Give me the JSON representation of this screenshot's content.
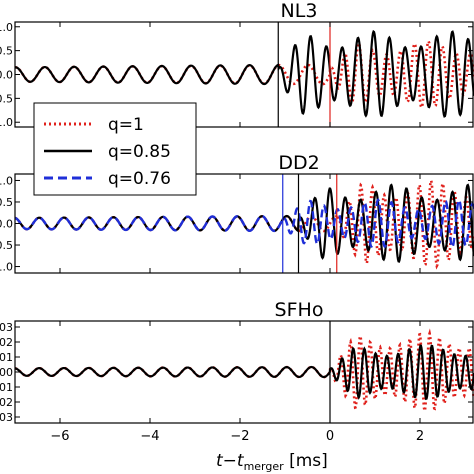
{
  "chart_data": {
    "type": "line",
    "xlabel_main": "t−t",
    "xlabel_sub": "merger",
    "xlabel_unit": " [ms]",
    "xlim": [
      -7,
      3.2
    ],
    "xticks": [
      -6,
      -4,
      -2,
      0,
      2
    ],
    "xtick_labels": [
      "−6",
      "−4",
      "−2",
      "0",
      "2"
    ],
    "legend": {
      "placement": "center-left",
      "entries": [
        {
          "label": "q=1",
          "color": "#e0201b",
          "style": "dotted"
        },
        {
          "label": "q=0.85",
          "color": "#000000",
          "style": "solid"
        },
        {
          "label": "q=0.76",
          "color": "#1f2fd8",
          "style": "dashed"
        }
      ]
    },
    "panels": [
      {
        "title": "NL3",
        "ylim": [
          -1.1,
          1.1
        ],
        "ytick_values": [
          1.0,
          0.5,
          0.0,
          -0.5,
          -1.0
        ],
        "ytick_labels": [
          "1.0",
          "0.5",
          "0.0",
          "0.5",
          "1.0"
        ],
        "vlines": [
          {
            "x": -1.15,
            "color": "#000000"
          },
          {
            "x": 0.0,
            "color": "#e0201b"
          }
        ],
        "series": [
          {
            "ref": "q=1",
            "style": "dotted",
            "color": "#e0201b",
            "inspiral_amp": 0.15,
            "inspiral_period": 0.65,
            "post_amp": 0.7,
            "post_period": 0.31,
            "t_merge": 0.0
          },
          {
            "ref": "q=0.85",
            "style": "solid",
            "color": "#000000",
            "inspiral_amp": 0.15,
            "inspiral_period": 0.65,
            "post_amp": 0.9,
            "post_period": 0.35,
            "t_merge": -1.15
          }
        ]
      },
      {
        "title": "DD2",
        "ylim": [
          -1.15,
          1.15
        ],
        "ytick_values": [
          1.0,
          0.5,
          0.0,
          -0.5,
          -1.0
        ],
        "ytick_labels": [
          "1.0",
          "0.5",
          "0.0",
          "0.5",
          "1.0"
        ],
        "vlines": [
          {
            "x": -1.05,
            "color": "#1f2fd8"
          },
          {
            "x": -0.7,
            "color": "#000000"
          },
          {
            "x": 0.15,
            "color": "#e0201b"
          }
        ],
        "series": [
          {
            "ref": "q=1",
            "style": "dotted",
            "color": "#e0201b",
            "inspiral_amp": 0.13,
            "inspiral_period": 0.55,
            "post_amp": 1.0,
            "post_period": 0.26,
            "t_merge": 0.15
          },
          {
            "ref": "q=0.85",
            "style": "solid",
            "color": "#000000",
            "inspiral_amp": 0.13,
            "inspiral_period": 0.55,
            "post_amp": 0.9,
            "post_period": 0.34,
            "t_merge": -0.7
          },
          {
            "ref": "q=0.76",
            "style": "dashed",
            "color": "#1f2fd8",
            "inspiral_amp": 0.13,
            "inspiral_period": 0.55,
            "post_amp": 0.55,
            "post_period": 0.3,
            "t_merge": -1.05
          }
        ]
      },
      {
        "title": "SFHo",
        "ylim": [
          -0.034,
          0.034
        ],
        "ytick_values": [
          0.03,
          0.02,
          0.01,
          0.0,
          -0.01,
          -0.02,
          -0.03
        ],
        "ytick_labels": [
          ".03",
          ".02",
          ".01",
          ".00",
          ".01",
          ".02",
          ".03"
        ],
        "vlines": [
          {
            "x": 0.0,
            "color": "#000000"
          }
        ],
        "series": [
          {
            "ref": "q=1",
            "style": "dotted",
            "color": "#e0201b",
            "inspiral_amp": 0.0025,
            "inspiral_period": 0.55,
            "post_amp": 0.026,
            "post_period": 0.22,
            "t_merge": 0.0
          },
          {
            "ref": "q=0.85",
            "style": "solid",
            "color": "#000000",
            "inspiral_amp": 0.0025,
            "inspiral_period": 0.55,
            "post_amp": 0.018,
            "post_period": 0.25,
            "t_merge": 0.0
          }
        ]
      }
    ]
  }
}
